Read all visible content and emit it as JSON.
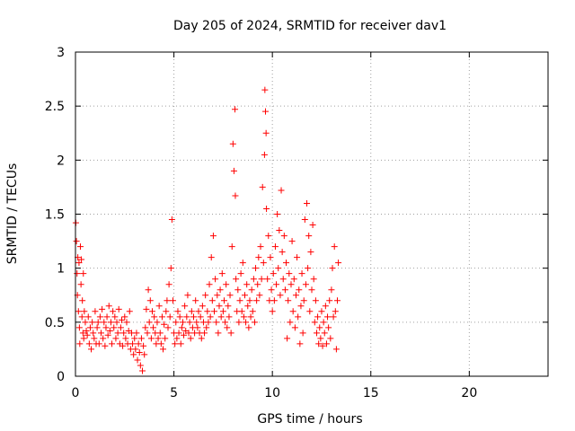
{
  "chart_data": {
    "type": "scatter",
    "title": "Day 205 of 2024, SRMTID for receiver dav1",
    "xlabel": "GPS time / hours",
    "ylabel": "SRMTID / TECUs",
    "xlim": [
      0,
      24
    ],
    "ylim": [
      0,
      3
    ],
    "xticks": [
      0,
      5,
      10,
      15,
      20
    ],
    "yticks": [
      0,
      0.5,
      1,
      1.5,
      2,
      2.5,
      3
    ],
    "xtick_labels": [
      "0",
      "5",
      "10",
      "15",
      "20"
    ],
    "ytick_labels": [
      "0",
      "0.5",
      "1",
      "1.5",
      "2",
      "2.5",
      "3"
    ],
    "grid": true,
    "marker": "+",
    "color": "#ff0000",
    "series": [
      {
        "name": "dav1",
        "points": [
          [
            0.02,
            1.42
          ],
          [
            0.05,
            1.25
          ],
          [
            0.08,
            0.95
          ],
          [
            0.1,
            0.75
          ],
          [
            0.12,
            1.1
          ],
          [
            0.15,
            0.6
          ],
          [
            0.18,
            1.05
          ],
          [
            0.2,
            0.45
          ],
          [
            0.22,
            0.3
          ],
          [
            0.25,
            1.2
          ],
          [
            0.28,
            0.85
          ],
          [
            0.3,
            1.08
          ],
          [
            0.33,
            0.55
          ],
          [
            0.35,
            0.7
          ],
          [
            0.38,
            0.4
          ],
          [
            0.4,
            0.95
          ],
          [
            0.42,
            0.35
          ],
          [
            0.45,
            0.6
          ],
          [
            0.5,
            0.5
          ],
          [
            0.55,
            0.42
          ],
          [
            0.6,
            0.38
          ],
          [
            0.65,
            0.55
          ],
          [
            0.7,
            0.3
          ],
          [
            0.75,
            0.45
          ],
          [
            0.8,
            0.25
          ],
          [
            0.85,
            0.5
          ],
          [
            0.9,
            0.4
          ],
          [
            0.95,
            0.35
          ],
          [
            1.0,
            0.6
          ],
          [
            1.05,
            0.3
          ],
          [
            1.1,
            0.45
          ],
          [
            1.15,
            0.5
          ],
          [
            1.2,
            0.3
          ],
          [
            1.25,
            0.55
          ],
          [
            1.3,
            0.4
          ],
          [
            1.35,
            0.62
          ],
          [
            1.4,
            0.35
          ],
          [
            1.45,
            0.5
          ],
          [
            1.5,
            0.28
          ],
          [
            1.55,
            0.45
          ],
          [
            1.6,
            0.55
          ],
          [
            1.65,
            0.38
          ],
          [
            1.7,
            0.65
          ],
          [
            1.75,
            0.42
          ],
          [
            1.8,
            0.5
          ],
          [
            1.85,
            0.3
          ],
          [
            1.9,
            0.6
          ],
          [
            1.95,
            0.45
          ],
          [
            2.0,
            0.55
          ],
          [
            2.05,
            0.35
          ],
          [
            2.1,
            0.5
          ],
          [
            2.15,
            0.4
          ],
          [
            2.2,
            0.62
          ],
          [
            2.25,
            0.3
          ],
          [
            2.3,
            0.45
          ],
          [
            2.35,
            0.52
          ],
          [
            2.4,
            0.28
          ],
          [
            2.45,
            0.4
          ],
          [
            2.5,
            0.55
          ],
          [
            2.55,
            0.35
          ],
          [
            2.6,
            0.5
          ],
          [
            2.65,
            0.3
          ],
          [
            2.7,
            0.42
          ],
          [
            2.75,
            0.6
          ],
          [
            2.8,
            0.25
          ],
          [
            2.85,
            0.4
          ],
          [
            2.9,
            0.3
          ],
          [
            2.95,
            0.2
          ],
          [
            3.0,
            0.35
          ],
          [
            3.05,
            0.25
          ],
          [
            3.1,
            0.4
          ],
          [
            3.15,
            0.15
          ],
          [
            3.2,
            0.3
          ],
          [
            3.25,
            0.22
          ],
          [
            3.3,
            0.1
          ],
          [
            3.35,
            0.35
          ],
          [
            3.4,
            0.05
          ],
          [
            3.45,
            0.28
          ],
          [
            3.5,
            0.2
          ],
          [
            3.55,
            0.45
          ],
          [
            3.6,
            0.62
          ],
          [
            3.65,
            0.4
          ],
          [
            3.7,
            0.8
          ],
          [
            3.75,
            0.5
          ],
          [
            3.8,
            0.7
          ],
          [
            3.85,
            0.35
          ],
          [
            3.9,
            0.6
          ],
          [
            3.95,
            0.45
          ],
          [
            4.0,
            0.55
          ],
          [
            4.05,
            0.4
          ],
          [
            4.1,
            0.3
          ],
          [
            4.15,
            0.5
          ],
          [
            4.2,
            0.35
          ],
          [
            4.25,
            0.65
          ],
          [
            4.3,
            0.4
          ],
          [
            4.35,
            0.3
          ],
          [
            4.4,
            0.55
          ],
          [
            4.45,
            0.25
          ],
          [
            4.5,
            0.48
          ],
          [
            4.55,
            0.35
          ],
          [
            4.6,
            0.6
          ],
          [
            4.65,
            0.7
          ],
          [
            4.7,
            0.45
          ],
          [
            4.75,
            0.85
          ],
          [
            4.8,
            0.55
          ],
          [
            4.85,
            1.0
          ],
          [
            4.9,
            1.45
          ],
          [
            4.95,
            0.7
          ],
          [
            5.0,
            0.4
          ],
          [
            5.05,
            0.3
          ],
          [
            5.1,
            0.5
          ],
          [
            5.15,
            0.35
          ],
          [
            5.2,
            0.6
          ],
          [
            5.25,
            0.4
          ],
          [
            5.3,
            0.55
          ],
          [
            5.35,
            0.3
          ],
          [
            5.4,
            0.45
          ],
          [
            5.45,
            0.5
          ],
          [
            5.5,
            0.38
          ],
          [
            5.55,
            0.65
          ],
          [
            5.6,
            0.42
          ],
          [
            5.65,
            0.55
          ],
          [
            5.7,
            0.75
          ],
          [
            5.75,
            0.4
          ],
          [
            5.8,
            0.5
          ],
          [
            5.85,
            0.35
          ],
          [
            5.9,
            0.6
          ],
          [
            5.95,
            0.45
          ],
          [
            6.0,
            0.55
          ],
          [
            6.05,
            0.4
          ],
          [
            6.1,
            0.7
          ],
          [
            6.15,
            0.5
          ],
          [
            6.2,
            0.45
          ],
          [
            6.25,
            0.6
          ],
          [
            6.3,
            0.4
          ],
          [
            6.35,
            0.55
          ],
          [
            6.4,
            0.35
          ],
          [
            6.45,
            0.65
          ],
          [
            6.5,
            0.5
          ],
          [
            6.55,
            0.4
          ],
          [
            6.6,
            0.75
          ],
          [
            6.65,
            0.45
          ],
          [
            6.7,
            0.6
          ],
          [
            6.75,
            0.5
          ],
          [
            6.8,
            0.85
          ],
          [
            6.85,
            0.55
          ],
          [
            6.9,
            1.1
          ],
          [
            6.95,
            0.7
          ],
          [
            7.0,
            1.3
          ],
          [
            7.05,
            0.6
          ],
          [
            7.1,
            0.9
          ],
          [
            7.15,
            0.5
          ],
          [
            7.2,
            0.75
          ],
          [
            7.25,
            0.4
          ],
          [
            7.3,
            0.65
          ],
          [
            7.35,
            0.8
          ],
          [
            7.4,
            0.55
          ],
          [
            7.45,
            0.95
          ],
          [
            7.5,
            0.6
          ],
          [
            7.55,
            0.7
          ],
          [
            7.6,
            0.5
          ],
          [
            7.65,
            0.85
          ],
          [
            7.7,
            0.45
          ],
          [
            7.75,
            0.65
          ],
          [
            7.8,
            0.55
          ],
          [
            7.85,
            0.75
          ],
          [
            7.9,
            0.4
          ],
          [
            7.95,
            1.2
          ],
          [
            8.0,
            2.15
          ],
          [
            8.05,
            1.9
          ],
          [
            8.1,
            2.47
          ],
          [
            8.12,
            1.67
          ],
          [
            8.15,
            0.9
          ],
          [
            8.2,
            0.6
          ],
          [
            8.25,
            0.8
          ],
          [
            8.3,
            0.5
          ],
          [
            8.35,
            0.7
          ],
          [
            8.4,
            0.95
          ],
          [
            8.45,
            0.6
          ],
          [
            8.5,
            1.05
          ],
          [
            8.55,
            0.55
          ],
          [
            8.6,
            0.75
          ],
          [
            8.65,
            0.5
          ],
          [
            8.7,
            0.85
          ],
          [
            8.75,
            0.65
          ],
          [
            8.8,
            0.45
          ],
          [
            8.85,
            0.7
          ],
          [
            8.9,
            0.55
          ],
          [
            8.95,
            0.8
          ],
          [
            9.0,
            0.6
          ],
          [
            9.05,
            0.9
          ],
          [
            9.1,
            0.5
          ],
          [
            9.15,
            1.0
          ],
          [
            9.2,
            0.7
          ],
          [
            9.25,
            0.85
          ],
          [
            9.3,
            1.1
          ],
          [
            9.35,
            0.75
          ],
          [
            9.4,
            1.2
          ],
          [
            9.45,
            0.9
          ],
          [
            9.5,
            1.75
          ],
          [
            9.55,
            1.05
          ],
          [
            9.6,
            2.05
          ],
          [
            9.62,
            2.65
          ],
          [
            9.65,
            2.45
          ],
          [
            9.68,
            2.25
          ],
          [
            9.7,
            1.55
          ],
          [
            9.75,
            0.9
          ],
          [
            9.8,
            1.3
          ],
          [
            9.85,
            0.7
          ],
          [
            9.9,
            1.1
          ],
          [
            9.95,
            0.8
          ],
          [
            10.0,
            0.6
          ],
          [
            10.05,
            0.95
          ],
          [
            10.1,
            0.7
          ],
          [
            10.15,
            1.2
          ],
          [
            10.2,
            0.85
          ],
          [
            10.25,
            1.5
          ],
          [
            10.3,
            1.0
          ],
          [
            10.35,
            1.35
          ],
          [
            10.4,
            0.75
          ],
          [
            10.45,
            1.72
          ],
          [
            10.5,
            1.15
          ],
          [
            10.55,
            0.9
          ],
          [
            10.6,
            1.3
          ],
          [
            10.65,
            0.8
          ],
          [
            10.7,
            1.05
          ],
          [
            10.75,
            0.35
          ],
          [
            10.8,
            0.7
          ],
          [
            10.85,
            0.95
          ],
          [
            10.9,
            0.5
          ],
          [
            10.95,
            0.85
          ],
          [
            11.0,
            1.25
          ],
          [
            11.05,
            0.6
          ],
          [
            11.1,
            0.9
          ],
          [
            11.15,
            0.45
          ],
          [
            11.2,
            0.75
          ],
          [
            11.25,
            1.1
          ],
          [
            11.3,
            0.55
          ],
          [
            11.35,
            0.8
          ],
          [
            11.4,
            0.3
          ],
          [
            11.45,
            0.65
          ],
          [
            11.5,
            0.95
          ],
          [
            11.55,
            0.4
          ],
          [
            11.6,
            0.7
          ],
          [
            11.65,
            1.45
          ],
          [
            11.7,
            0.85
          ],
          [
            11.75,
            1.6
          ],
          [
            11.8,
            1.0
          ],
          [
            11.85,
            1.3
          ],
          [
            11.9,
            0.6
          ],
          [
            11.95,
            1.15
          ],
          [
            12.0,
            0.8
          ],
          [
            12.05,
            1.4
          ],
          [
            12.1,
            0.9
          ],
          [
            12.15,
            0.5
          ],
          [
            12.2,
            0.7
          ],
          [
            12.25,
            0.4
          ],
          [
            12.3,
            0.55
          ],
          [
            12.35,
            0.3
          ],
          [
            12.4,
            0.45
          ],
          [
            12.45,
            0.35
          ],
          [
            12.5,
            0.6
          ],
          [
            12.55,
            0.28
          ],
          [
            12.6,
            0.5
          ],
          [
            12.65,
            0.4
          ],
          [
            12.7,
            0.65
          ],
          [
            12.75,
            0.3
          ],
          [
            12.8,
            0.55
          ],
          [
            12.85,
            0.45
          ],
          [
            12.9,
            0.7
          ],
          [
            12.95,
            0.35
          ],
          [
            13.0,
            0.8
          ],
          [
            13.05,
            1.0
          ],
          [
            13.1,
            0.55
          ],
          [
            13.15,
            1.2
          ],
          [
            13.2,
            0.6
          ],
          [
            13.25,
            0.25
          ],
          [
            13.3,
            0.7
          ],
          [
            13.35,
            1.05
          ]
        ]
      }
    ]
  }
}
